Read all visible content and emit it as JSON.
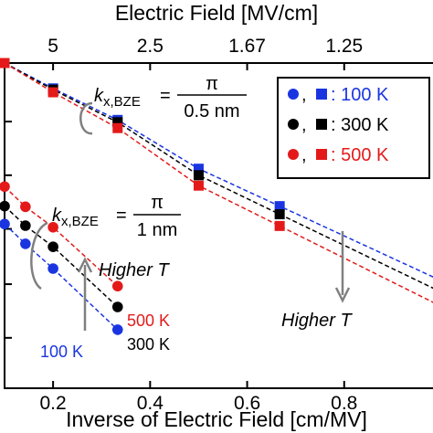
{
  "chart_data": {
    "type": "scatter",
    "xlabel": "Inverse of Electric Field [cm/MV]",
    "x2label": "Electric Field [MV/cm]",
    "xlim": [
      0.1,
      1.0
    ],
    "ylim": [
      0,
      1
    ],
    "bottom_ticks": [
      {
        "value": 0.2,
        "label": "0.2"
      },
      {
        "value": 0.4,
        "label": "0.4"
      },
      {
        "value": 0.6,
        "label": "0.6"
      },
      {
        "value": 0.8,
        "label": "0.8"
      }
    ],
    "top_ticks": [
      {
        "value": 0.2,
        "label": "5"
      },
      {
        "value": 0.4,
        "label": "2.5"
      },
      {
        "value": 0.6,
        "label": "1.67"
      },
      {
        "value": 0.8,
        "label": "1.25"
      }
    ],
    "y_ticks": [
      0.155,
      0.32,
      0.49,
      0.655,
      0.82
    ],
    "grid": false,
    "legend": {
      "position": "top-right",
      "items": [
        {
          "label": ": 100 K",
          "color": "#1a35e0",
          "text_color": "#1a35e0"
        },
        {
          "label": ": 300 K",
          "color": "#000000",
          "text_color": "#000000"
        },
        {
          "label": ": 500 K",
          "color": "#e41a1a",
          "text_color": "#e41a1a"
        }
      ]
    },
    "series": [
      {
        "group": "squares",
        "temperature": "100 K",
        "color": "#1a35e0",
        "marker": "square",
        "x": [
          0.1,
          0.2,
          0.333,
          0.5,
          0.667
        ],
        "y": [
          1.0,
          0.922,
          0.825,
          0.675,
          0.56
        ]
      },
      {
        "group": "squares",
        "temperature": "300 K",
        "color": "#000000",
        "marker": "square",
        "x": [
          0.1,
          0.2,
          0.333,
          0.5,
          0.667
        ],
        "y": [
          1.0,
          0.918,
          0.818,
          0.655,
          0.535
        ]
      },
      {
        "group": "squares",
        "temperature": "500 K",
        "color": "#e41a1a",
        "marker": "square",
        "x": [
          0.1,
          0.2,
          0.333,
          0.5,
          0.667
        ],
        "y": [
          1.0,
          0.91,
          0.8,
          0.623,
          0.499
        ]
      },
      {
        "group": "circles",
        "temperature": "100 K",
        "color": "#1a35e0",
        "marker": "circle",
        "x": [
          0.1,
          0.143,
          0.2,
          0.333
        ],
        "y": [
          0.505,
          0.444,
          0.368,
          0.18
        ]
      },
      {
        "group": "circles",
        "temperature": "300 K",
        "color": "#000000",
        "marker": "circle",
        "x": [
          0.1,
          0.143,
          0.2,
          0.333
        ],
        "y": [
          0.56,
          0.5,
          0.435,
          0.25
        ]
      },
      {
        "group": "circles",
        "temperature": "500 K",
        "color": "#e41a1a",
        "marker": "circle",
        "x": [
          0.1,
          0.143,
          0.2,
          0.333
        ],
        "y": [
          0.62,
          0.558,
          0.495,
          0.314
        ]
      }
    ],
    "annotations": {
      "k_top": {
        "lhs_main": "k",
        "lhs_sub": "x,BZE",
        "eq": "=",
        "numerator": "π",
        "denominator": "0.5 nm"
      },
      "k_bottom": {
        "lhs_main": "k",
        "lhs_sub": "x,BZE",
        "eq": "=",
        "numerator": "π",
        "denominator": "1 nm"
      },
      "higher_t_up": "Higher T",
      "higher_t_down": "Higher T",
      "label_500k": "500 K",
      "label_300k": "300 K",
      "label_100k": "100 K"
    },
    "colors": {
      "blue": "#1a35e0",
      "black": "#000000",
      "red": "#e41a1a",
      "arrow": "#808080"
    }
  }
}
